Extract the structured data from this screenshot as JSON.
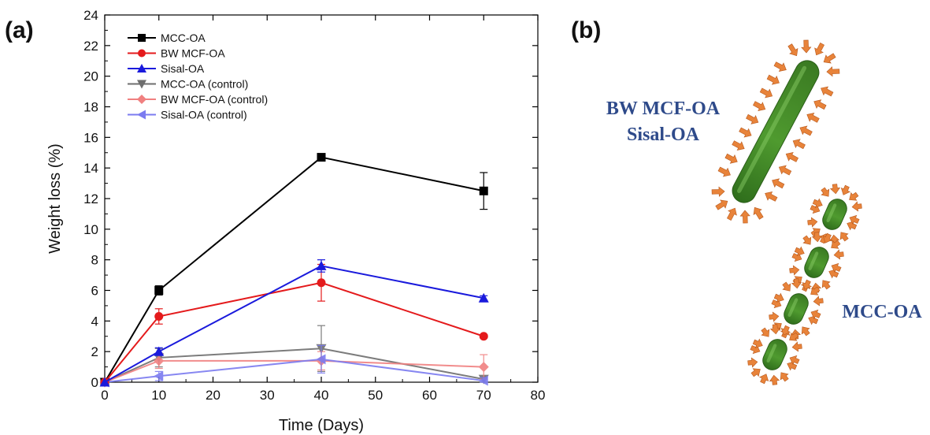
{
  "panel_labels": {
    "a": "(a)",
    "b": "(b)"
  },
  "diagram": {
    "label_long_1": "BW MCF-OA",
    "label_long_2": "Sisal-OA",
    "label_short": "MCC-OA",
    "fiber_color": "#4f9a2f",
    "arrow_color": "#e8833a",
    "label_color": "#2e4a8a"
  },
  "chart_data": {
    "type": "line",
    "xlabel": "Time (Days)",
    "ylabel": "Weight loss (%)",
    "xlim": [
      0,
      80
    ],
    "ylim": [
      0,
      24
    ],
    "xticks": [
      0,
      10,
      20,
      30,
      40,
      50,
      60,
      70,
      80
    ],
    "yticks": [
      0,
      2,
      4,
      6,
      8,
      10,
      12,
      14,
      16,
      18,
      20,
      22,
      24
    ],
    "grid": false,
    "legend_position": "top-left",
    "series": [
      {
        "name": "MCC-OA",
        "color": "#000000",
        "marker": "square",
        "x": [
          0,
          10,
          40,
          70
        ],
        "y": [
          0,
          6.0,
          14.7,
          12.5
        ],
        "err": [
          0,
          0.3,
          0.15,
          1.2
        ]
      },
      {
        "name": "BW MCF-OA",
        "color": "#e41a1c",
        "marker": "circle",
        "x": [
          0,
          10,
          40,
          70
        ],
        "y": [
          0,
          4.3,
          6.5,
          3.0
        ],
        "err": [
          0,
          0.5,
          1.2,
          0.1
        ]
      },
      {
        "name": "Sisal-OA",
        "color": "#1a1adc",
        "marker": "triangle-up",
        "x": [
          0,
          10,
          40,
          70
        ],
        "y": [
          0,
          2.0,
          7.6,
          5.5
        ],
        "err": [
          0,
          0.25,
          0.4,
          0.15
        ]
      },
      {
        "name": "MCC-OA (control)",
        "color": "#6e6e6e",
        "marker": "triangle-down",
        "x": [
          0,
          10,
          40,
          70
        ],
        "y": [
          0,
          1.6,
          2.2,
          0.2
        ],
        "err": [
          0,
          0.6,
          1.5,
          0.2
        ]
      },
      {
        "name": "BW MCF-OA (control)",
        "color": "#f08080",
        "marker": "diamond",
        "x": [
          0,
          10,
          40,
          70
        ],
        "y": [
          0,
          1.4,
          1.4,
          1.0
        ],
        "err": [
          0,
          0.5,
          0.6,
          0.8
        ]
      },
      {
        "name": "Sisal-OA (control)",
        "color": "#7b7bf0",
        "marker": "triangle-left",
        "x": [
          0,
          10,
          40,
          70
        ],
        "y": [
          0,
          0.4,
          1.5,
          0.1
        ],
        "err": [
          0,
          0.3,
          0.9,
          0.2
        ]
      }
    ]
  }
}
